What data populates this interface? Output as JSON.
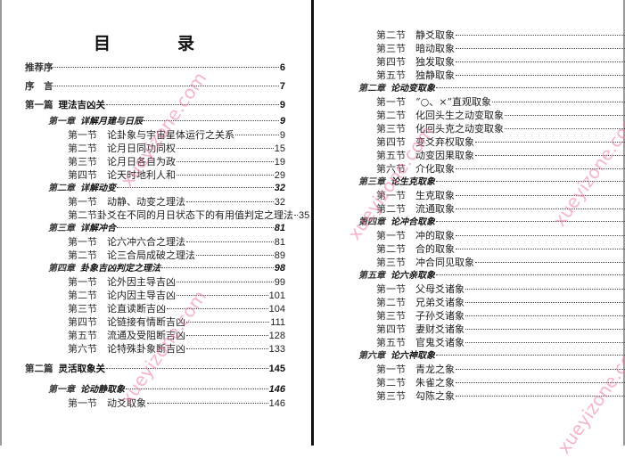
{
  "watermark": "xueyizone.com",
  "left_page": {
    "title": "目　录",
    "entries": [
      {
        "level": "part",
        "wide": true,
        "no": "推荐序",
        "title": "",
        "page": "6"
      },
      {
        "level": "part",
        "wide": true,
        "no": "序　言",
        "title": "",
        "page": "7"
      },
      {
        "level": "part",
        "no": "第一篇",
        "title": "理法吉凶关",
        "page": "9"
      },
      {
        "level": "chapter",
        "no": "第一章",
        "title": "详解月建与日辰",
        "page": "9"
      },
      {
        "level": "section",
        "no": "第一节",
        "title": "论卦象与宇宙星体运行之关系",
        "page": "9"
      },
      {
        "level": "section",
        "no": "第二节",
        "title": "论月日同功同权",
        "page": "15"
      },
      {
        "level": "section",
        "no": "第三节",
        "title": "论月日各自为政",
        "page": "19"
      },
      {
        "level": "section",
        "no": "第四节",
        "title": "论天时地利人和",
        "page": "29"
      },
      {
        "level": "chapter",
        "no": "第二章",
        "title": "详解动变",
        "page": "32"
      },
      {
        "level": "section",
        "no": "第一节",
        "title": "动静、动变之理法",
        "page": "32"
      },
      {
        "level": "section",
        "no": "第二节",
        "title": "卦爻在不同的月日状态下的有用值判定之理法",
        "page": "35"
      },
      {
        "level": "chapter",
        "no": "第三章",
        "title": "详解冲合",
        "page": "81"
      },
      {
        "level": "section",
        "no": "第一节",
        "title": "论六冲六合之理法",
        "page": "81"
      },
      {
        "level": "section",
        "no": "第二节",
        "title": "论三合局成破之理法",
        "page": "89"
      },
      {
        "level": "chapter",
        "no": "第四章",
        "title": "卦象吉凶判定之理法",
        "page": "98"
      },
      {
        "level": "section",
        "no": "第一节",
        "title": "论外因主导吉凶",
        "page": "99"
      },
      {
        "level": "section",
        "no": "第二节",
        "title": "论内因主导吉凶",
        "page": "101"
      },
      {
        "level": "section",
        "no": "第三节",
        "title": "论直读断吉凶",
        "page": "104"
      },
      {
        "level": "section",
        "no": "第四节",
        "title": "论链接有情断吉凶",
        "page": "111"
      },
      {
        "level": "section",
        "no": "第五节",
        "title": "流通及受阻断吉凶",
        "page": "128"
      },
      {
        "level": "section",
        "no": "第六节",
        "title": "论特殊卦象断吉凶",
        "page": "133"
      },
      {
        "level": "part",
        "no": "第二篇",
        "title": "灵活取象关",
        "page": "145"
      },
      {
        "level": "chapter",
        "no": "第一章",
        "title": "论动静取象",
        "page": "146"
      },
      {
        "level": "section",
        "no": "第一节",
        "title": "动爻取象",
        "page": "146"
      }
    ]
  },
  "right_page": {
    "entries": [
      {
        "level": "section",
        "no": "第二节",
        "title": "静爻取象",
        "page": "148"
      },
      {
        "level": "section",
        "no": "第三节",
        "title": "暗动取象",
        "page": "150"
      },
      {
        "level": "section",
        "no": "第四节",
        "title": "独发取象",
        "page": "152"
      },
      {
        "level": "section",
        "no": "第五节",
        "title": "独静取象",
        "page": "153"
      },
      {
        "level": "chapter",
        "no": "第二章",
        "title": "论动变取象",
        "page": "153"
      },
      {
        "level": "section",
        "no": "第一节",
        "title": "“○、×”直观取象",
        "page": "154"
      },
      {
        "level": "section",
        "no": "第二节",
        "title": "化回头生之动变取象",
        "page": "156"
      },
      {
        "level": "section",
        "no": "第三节",
        "title": "化回头克之动变取象",
        "page": "157"
      },
      {
        "level": "section",
        "no": "第四节",
        "title": "变爻弃权取象",
        "page": "158"
      },
      {
        "level": "section",
        "no": "第五节",
        "title": "动变因果取象",
        "page": "160"
      },
      {
        "level": "section",
        "no": "第六节",
        "title": "介化取象",
        "page": "162"
      },
      {
        "level": "chapter",
        "no": "第三章",
        "title": "论生克取象",
        "page": "162"
      },
      {
        "level": "section",
        "no": "第一节",
        "title": "生克取象",
        "page": "163"
      },
      {
        "level": "section",
        "no": "第二节",
        "title": "流通取象",
        "page": "165"
      },
      {
        "level": "chapter",
        "no": "第四章",
        "title": "论冲合取象",
        "page": "168"
      },
      {
        "level": "section",
        "no": "第一节",
        "title": "冲的取象",
        "page": "168"
      },
      {
        "level": "section",
        "no": "第二节",
        "title": "合的取象",
        "page": "171"
      },
      {
        "level": "section",
        "no": "第三节",
        "title": "冲合同见取象",
        "page": "174"
      },
      {
        "level": "chapter",
        "no": "第五章",
        "title": "论六亲取象",
        "page": "176"
      },
      {
        "level": "section",
        "no": "第一节",
        "title": "父母爻诸象",
        "page": "177"
      },
      {
        "level": "section",
        "no": "第二节",
        "title": "兄弟爻诸象",
        "page": "179"
      },
      {
        "level": "section",
        "no": "第三节",
        "title": "子孙爻诸象",
        "page": "181"
      },
      {
        "level": "section",
        "no": "第四节",
        "title": "妻财爻诸象",
        "page": "182"
      },
      {
        "level": "section",
        "no": "第五节",
        "title": "官鬼爻诸象",
        "page": "184"
      },
      {
        "level": "chapter",
        "no": "第六章",
        "title": "论六神取象",
        "page": "186"
      },
      {
        "level": "section",
        "no": "第一节",
        "title": "青龙之象",
        "page": "191"
      },
      {
        "level": "section",
        "no": "第二节",
        "title": "朱雀之象",
        "page": "192"
      },
      {
        "level": "section",
        "no": "第三节",
        "title": "勾陈之象",
        "page": "193"
      }
    ]
  }
}
